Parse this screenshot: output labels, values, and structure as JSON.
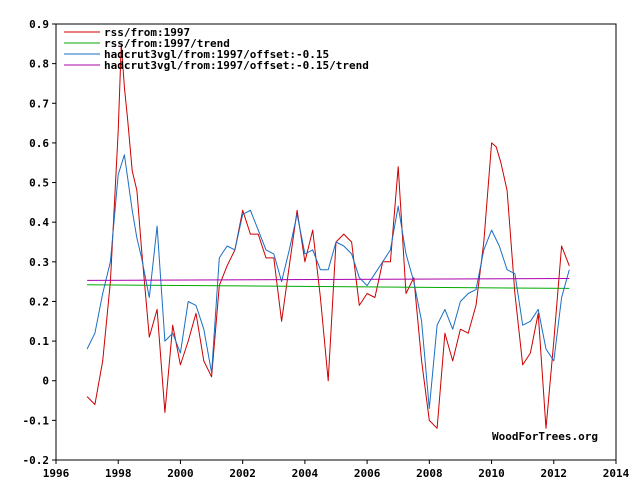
{
  "chart_data": {
    "type": "line",
    "title": "",
    "xlabel": "",
    "ylabel": "",
    "xlim": [
      1996,
      2014
    ],
    "ylim": [
      -0.2,
      0.9
    ],
    "x_ticks": [
      1996,
      1998,
      2000,
      2002,
      2004,
      2006,
      2008,
      2010,
      2012,
      2014
    ],
    "x_tick_labels": [
      "1996",
      "1998",
      "2000",
      "2002",
      "2004",
      "2006",
      "2008",
      "2010",
      "2012",
      "2014"
    ],
    "y_ticks": [
      -0.2,
      -0.1,
      0,
      0.1,
      0.2,
      0.3,
      0.4,
      0.5,
      0.6,
      0.7,
      0.8,
      0.9
    ],
    "y_tick_labels": [
      "-0.2",
      "-0.1",
      "0",
      "0.1",
      "0.2",
      "0.3",
      "0.4",
      "0.5",
      "0.6",
      "0.7",
      "0.8",
      "0.9"
    ],
    "grid": false,
    "legend_position": "top-left",
    "watermark": "WoodForTrees.org",
    "series": [
      {
        "name": "rss/from:1997",
        "color": "#cc0000",
        "x": [
          1997.0,
          1997.25,
          1997.5,
          1997.75,
          1998.0,
          1998.1,
          1998.2,
          1998.3,
          1998.45,
          1998.6,
          1998.75,
          1999.0,
          1999.25,
          1999.5,
          1999.75,
          2000.0,
          2000.25,
          2000.5,
          2000.75,
          2001.0,
          2001.25,
          2001.5,
          2001.75,
          2002.0,
          2002.25,
          2002.5,
          2002.75,
          2003.0,
          2003.25,
          2003.5,
          2003.75,
          2004.0,
          2004.25,
          2004.5,
          2004.75,
          2005.0,
          2005.25,
          2005.5,
          2005.75,
          2006.0,
          2006.25,
          2006.5,
          2006.75,
          2007.0,
          2007.25,
          2007.5,
          2007.75,
          2008.0,
          2008.25,
          2008.5,
          2008.75,
          2009.0,
          2009.25,
          2009.5,
          2009.75,
          2010.0,
          2010.15,
          2010.3,
          2010.5,
          2010.75,
          2011.0,
          2011.25,
          2011.5,
          2011.75,
          2012.0,
          2012.25,
          2012.5
        ],
        "values": [
          -0.04,
          -0.06,
          0.05,
          0.25,
          0.63,
          0.85,
          0.74,
          0.66,
          0.53,
          0.48,
          0.33,
          0.11,
          0.18,
          -0.08,
          0.14,
          0.04,
          0.1,
          0.17,
          0.05,
          0.01,
          0.24,
          0.29,
          0.33,
          0.43,
          0.37,
          0.37,
          0.31,
          0.31,
          0.15,
          0.29,
          0.43,
          0.3,
          0.38,
          0.21,
          0.0,
          0.35,
          0.37,
          0.35,
          0.19,
          0.22,
          0.21,
          0.3,
          0.3,
          0.54,
          0.22,
          0.26,
          0.05,
          -0.1,
          -0.12,
          0.12,
          0.05,
          0.13,
          0.12,
          0.19,
          0.35,
          0.6,
          0.59,
          0.55,
          0.48,
          0.22,
          0.04,
          0.07,
          0.17,
          -0.12,
          0.1,
          0.34,
          0.29
        ]
      },
      {
        "name": "rss/from:1997/trend",
        "color": "#00aa00",
        "x": [
          1997.0,
          2012.5
        ],
        "values": [
          0.242,
          0.233
        ]
      },
      {
        "name": "hadcrut3vgl/from:1997/offset:-0.15",
        "color": "#1a6fc4",
        "x": [
          1997.0,
          1997.25,
          1997.5,
          1997.75,
          1998.0,
          1998.2,
          1998.45,
          1998.6,
          1998.75,
          1999.0,
          1999.25,
          1999.5,
          1999.75,
          2000.0,
          2000.25,
          2000.5,
          2000.75,
          2001.0,
          2001.25,
          2001.5,
          2001.75,
          2002.0,
          2002.25,
          2002.5,
          2002.75,
          2003.0,
          2003.25,
          2003.5,
          2003.75,
          2004.0,
          2004.25,
          2004.5,
          2004.75,
          2005.0,
          2005.25,
          2005.5,
          2005.75,
          2006.0,
          2006.25,
          2006.5,
          2006.75,
          2007.0,
          2007.25,
          2007.5,
          2007.75,
          2008.0,
          2008.25,
          2008.5,
          2008.75,
          2009.0,
          2009.25,
          2009.5,
          2009.75,
          2010.0,
          2010.25,
          2010.5,
          2010.75,
          2011.0,
          2011.25,
          2011.5,
          2011.75,
          2012.0,
          2012.25,
          2012.5
        ],
        "values": [
          0.08,
          0.12,
          0.22,
          0.3,
          0.52,
          0.57,
          0.43,
          0.36,
          0.31,
          0.21,
          0.39,
          0.1,
          0.12,
          0.07,
          0.2,
          0.19,
          0.13,
          0.02,
          0.31,
          0.34,
          0.33,
          0.42,
          0.43,
          0.38,
          0.33,
          0.32,
          0.25,
          0.33,
          0.42,
          0.32,
          0.33,
          0.28,
          0.28,
          0.35,
          0.34,
          0.32,
          0.26,
          0.24,
          0.27,
          0.3,
          0.33,
          0.44,
          0.32,
          0.25,
          0.15,
          -0.07,
          0.14,
          0.18,
          0.13,
          0.2,
          0.22,
          0.23,
          0.33,
          0.38,
          0.34,
          0.28,
          0.27,
          0.14,
          0.15,
          0.18,
          0.08,
          0.05,
          0.21,
          0.28
        ]
      },
      {
        "name": "hadcrut3vgl/from:1997/offset:-0.15/trend",
        "color": "#aa00aa",
        "x": [
          1997.0,
          2012.5
        ],
        "values": [
          0.253,
          0.258
        ]
      }
    ]
  }
}
